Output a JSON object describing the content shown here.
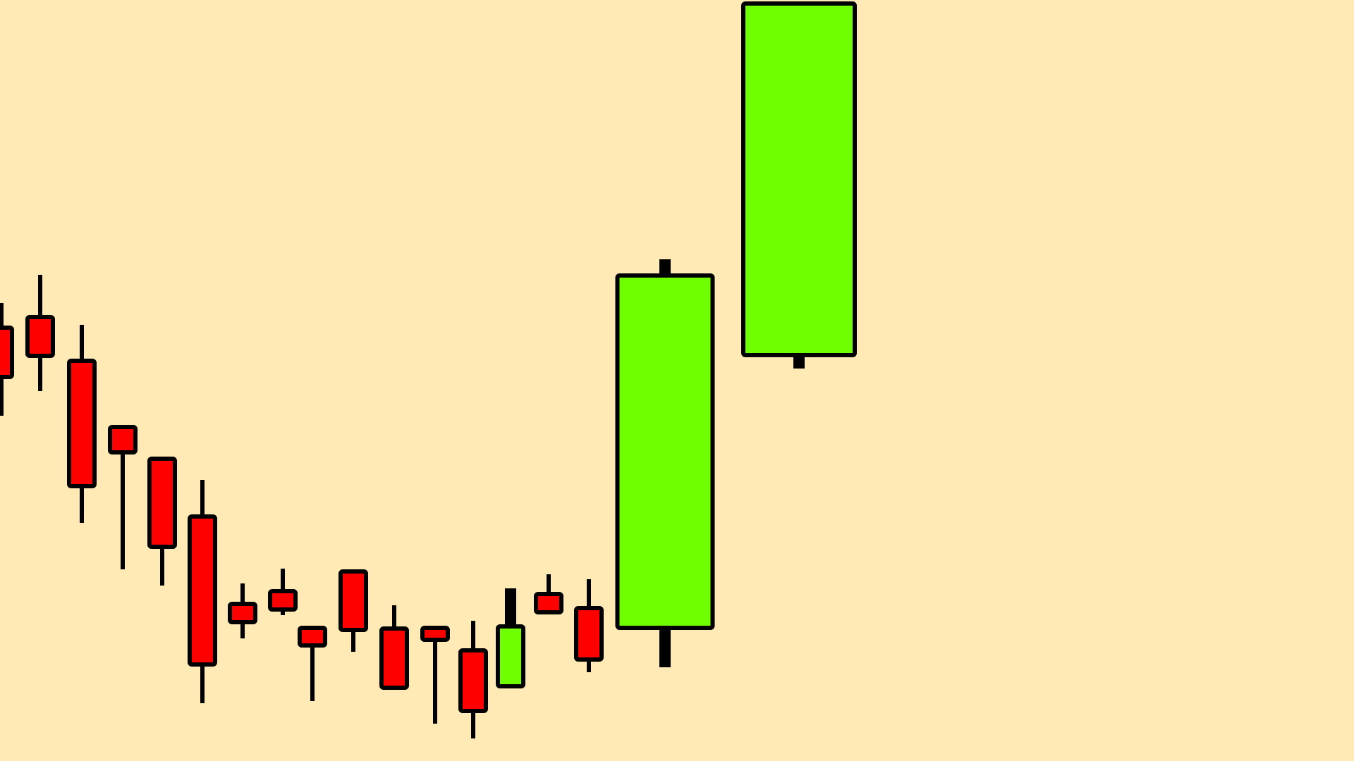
{
  "background_color": "#FFE9B5",
  "outline_color": "#000000",
  "bull_color": "#70FF00",
  "bear_color": "#FF0000",
  "chart_data": {
    "type": "candlestick",
    "title": "",
    "xlabel": "",
    "ylabel": "",
    "axes_visible": false,
    "grid": false,
    "ylim": [
      0,
      1080
    ],
    "candles": [
      {
        "open": 615,
        "close": 545,
        "high": 650,
        "low": 490
      },
      {
        "open": 630,
        "close": 575,
        "high": 690,
        "low": 525
      },
      {
        "open": 568,
        "close": 390,
        "high": 619,
        "low": 338
      },
      {
        "open": 474,
        "close": 438,
        "high": 474,
        "low": 272
      },
      {
        "open": 429,
        "close": 304,
        "high": 429,
        "low": 249
      },
      {
        "open": 347,
        "close": 137,
        "high": 399,
        "low": 82
      },
      {
        "open": 223,
        "close": 197,
        "high": 252,
        "low": 174
      },
      {
        "open": 241,
        "close": 215,
        "high": 273,
        "low": 207
      },
      {
        "open": 189,
        "close": 164,
        "high": 189,
        "low": 85
      },
      {
        "open": 269,
        "close": 186,
        "high": 269,
        "low": 155
      },
      {
        "open": 188,
        "close": 104,
        "high": 221,
        "low": 104
      },
      {
        "open": 189,
        "close": 172,
        "high": 189,
        "low": 53
      },
      {
        "open": 157,
        "close": 71,
        "high": 199,
        "low": 32
      },
      {
        "open": 106,
        "close": 191,
        "high": 245,
        "low": 106
      },
      {
        "open": 237,
        "close": 211,
        "high": 265,
        "low": 211
      },
      {
        "open": 217,
        "close": 144,
        "high": 258,
        "low": 126
      },
      {
        "open": 189,
        "close": 689,
        "high": 712,
        "low": 133
      },
      {
        "open": 576,
        "close": 1075,
        "high": 1075,
        "low": 557
      }
    ]
  }
}
